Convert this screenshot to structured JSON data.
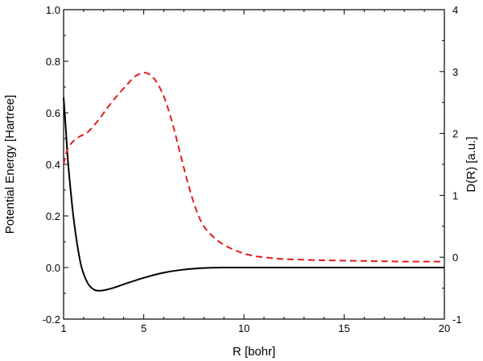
{
  "chart_data": {
    "type": "line",
    "xlabel": "R [bohr]",
    "ylabel_left": "Potential Energy [Hartree]",
    "ylabel_right": "D(R) [a.u.]",
    "xlim": [
      1,
      20
    ],
    "ylim_left": [
      -0.2,
      1.0
    ],
    "ylim_right": [
      -1,
      4
    ],
    "xticks": [
      1,
      5,
      10,
      15,
      20
    ],
    "yticks_left": [
      -0.2,
      0.0,
      0.2,
      0.4,
      0.6,
      0.8,
      1.0
    ],
    "yticks_right": [
      -1,
      0,
      1,
      2,
      3,
      4
    ],
    "x_tick_labels": [
      "1",
      "5",
      "10",
      "15",
      "20"
    ],
    "y_left_tick_labels": [
      "-0.2",
      "0.0",
      "0.2",
      "0.4",
      "0.6",
      "0.8",
      "1.0"
    ],
    "y_right_tick_labels": [
      "-1",
      "0",
      "1",
      "2",
      "3",
      "4"
    ],
    "grid": false,
    "legend": "none",
    "series": [
      {
        "axis": "left",
        "color": "#000000",
        "style": "solid",
        "x": [
          1.0,
          1.1,
          1.2,
          1.35,
          1.5,
          1.7,
          1.9,
          2.2,
          2.5,
          2.8,
          3.2,
          3.6,
          4.0,
          5.0,
          6.0,
          7.0,
          8.0,
          9.0,
          10.0,
          12.0,
          15.0,
          20.0
        ],
        "y": [
          0.66,
          0.55,
          0.43,
          0.3,
          0.19,
          0.08,
          0.0,
          -0.06,
          -0.085,
          -0.09,
          -0.085,
          -0.076,
          -0.065,
          -0.04,
          -0.02,
          -0.008,
          -0.002,
          0.0,
          0.0,
          0.0,
          0.0,
          0.0
        ]
      },
      {
        "axis": "right",
        "color": "#e41a1c",
        "style": "dashed",
        "x": [
          1.0,
          1.15,
          1.3,
          1.5,
          1.8,
          2.2,
          2.7,
          3.2,
          3.7,
          4.2,
          4.6,
          5.0,
          5.3,
          5.6,
          6.0,
          6.4,
          6.8,
          7.2,
          7.6,
          8.0,
          8.5,
          9.0,
          9.5,
          10.0,
          10.5,
          11.0,
          12.0,
          14.0,
          16.0,
          18.0,
          20.0
        ],
        "y": [
          1.5,
          1.7,
          1.8,
          1.88,
          1.95,
          2.02,
          2.2,
          2.42,
          2.62,
          2.8,
          2.93,
          2.98,
          2.95,
          2.85,
          2.6,
          2.2,
          1.7,
          1.2,
          0.78,
          0.5,
          0.32,
          0.2,
          0.12,
          0.06,
          0.02,
          0.0,
          -0.03,
          -0.05,
          -0.06,
          -0.07,
          -0.07
        ]
      }
    ]
  }
}
